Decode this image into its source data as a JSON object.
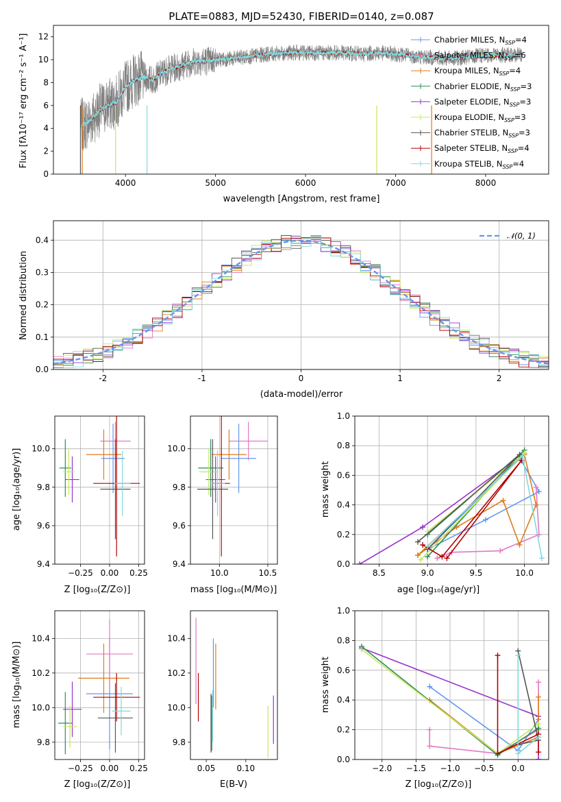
{
  "chart_data": [
    {
      "id": "spectrum",
      "type": "line",
      "title": "PLATE=0883, MJD=52430, FIBERID=0140, z=0.087",
      "xlabel": "wavelength [Angstrom, rest frame]",
      "ylabel": "Flux [fλ10⁻¹⁷ erg cm⁻² s⁻¹ A⁻¹]",
      "xlim": [
        3200,
        8700
      ],
      "ylim": [
        0,
        13
      ],
      "xticks": [
        4000,
        5000,
        6000,
        7000,
        8000
      ],
      "yticks": [
        0,
        2,
        4,
        6,
        8,
        10,
        12
      ],
      "grid": false,
      "legend_position": "top-right",
      "series": [
        {
          "name": "Chabrier MILES, N",
          "sub": "SSP",
          "suffix": "=4",
          "color": "#6495ed"
        },
        {
          "name": "Salpeter MILES, N",
          "sub": "SSP",
          "suffix": "=6",
          "color": "#e377c2"
        },
        {
          "name": "Kroupa MILES, N",
          "sub": "SSP",
          "suffix": "=4",
          "color": "#e07b1a"
        },
        {
          "name": "Chabrier ELODIE, N",
          "sub": "SSP",
          "suffix": "=3",
          "color": "#2e8b57"
        },
        {
          "name": "Salpeter ELODIE, N",
          "sub": "SSP",
          "suffix": "=3",
          "color": "#9932cc"
        },
        {
          "name": "Kroupa ELODIE, N",
          "sub": "SSP",
          "suffix": "=3",
          "color": "#c5e85a"
        },
        {
          "name": "Chabrier STELIB, N",
          "sub": "SSP",
          "suffix": "=3",
          "color": "#555555"
        },
        {
          "name": "Salpeter STELIB, N",
          "sub": "SSP",
          "suffix": "=4",
          "color": "#b30000"
        },
        {
          "name": "Kroupa STELIB, N",
          "sub": "SSP",
          "suffix": "=4",
          "color": "#7fd9e0"
        }
      ],
      "data_color": "#808080",
      "model_x": [
        3500,
        3600,
        3700,
        3800,
        3900,
        4000,
        4100,
        4200,
        4300,
        4400,
        4500,
        4600,
        4700,
        4800,
        4900,
        5000,
        5200,
        5400,
        5600,
        5800,
        6000,
        6200,
        6400,
        6600,
        6800,
        7000,
        7200,
        7400,
        7600,
        7800,
        8000,
        8200,
        8400
      ],
      "model_y": [
        4.2,
        4.6,
        5.5,
        6.0,
        6.3,
        7.6,
        8.2,
        8.5,
        8.2,
        8.8,
        9.2,
        9.4,
        9.7,
        9.9,
        9.9,
        10.0,
        10.1,
        10.3,
        10.5,
        10.6,
        10.6,
        10.6,
        10.6,
        10.5,
        10.6,
        10.5,
        10.3,
        10.2,
        10.1,
        10.2,
        10.4,
        10.4,
        10.4
      ]
    },
    {
      "id": "residuals",
      "type": "histogram",
      "xlabel": "(data-model)/error",
      "ylabel": "Normed distribution",
      "xlim": [
        -2.5,
        2.5
      ],
      "ylim": [
        0,
        0.46
      ],
      "xticks": [
        -2,
        -1,
        0,
        1,
        2
      ],
      "yticks": [
        0.0,
        0.1,
        0.2,
        0.3,
        0.4
      ],
      "grid": true,
      "legend_position": "top-right",
      "reference_curve": {
        "name": "𝒩(0, 1)",
        "color": "#6495ed",
        "mean": 0,
        "sigma": 1
      },
      "bin_width": 0.1
    },
    {
      "id": "age_vs_Z",
      "type": "errorbar",
      "xlabel": "Z [log₁₀(Z/Z⊙)]",
      "ylabel": "age  [log₁₀(age/yr)]",
      "xlim": [
        -0.47,
        0.3
      ],
      "ylim": [
        9.4,
        10.17
      ],
      "xticks": [
        -0.25,
        0.0,
        0.25
      ],
      "xticklabels": [
        "−0.25",
        "0.00",
        "0.25"
      ],
      "yticks": [
        9.4,
        9.6,
        9.8,
        10.0
      ],
      "grid": true,
      "points": [
        {
          "color": "#6495ed",
          "x": 0.03,
          "xerr": 0.1,
          "y": 9.95,
          "yerr": 0.18
        },
        {
          "color": "#e377c2",
          "x": 0.05,
          "xerr": 0.13,
          "y": 10.04,
          "yerr": 0.1
        },
        {
          "color": "#e07b1a",
          "x": -0.05,
          "xerr": 0.15,
          "y": 9.97,
          "yerr": 0.13
        },
        {
          "color": "#2e8b57",
          "x": -0.38,
          "xerr": 0.05,
          "y": 9.9,
          "yerr": 0.15
        },
        {
          "color": "#9932cc",
          "x": -0.32,
          "xerr": 0.06,
          "y": 9.84,
          "yerr": 0.12
        },
        {
          "color": "#c5e85a",
          "x": -0.35,
          "xerr": 0.05,
          "y": 9.88,
          "yerr": 0.12
        },
        {
          "color": "#555555",
          "x": 0.05,
          "xerr": 0.13,
          "y": 9.79,
          "yerr": 0.26
        },
        {
          "color": "#b30000",
          "x": 0.06,
          "xerr": 0.2,
          "y": 9.82,
          "yerr": 0.38
        },
        {
          "color": "#7fd9e0",
          "x": 0.11,
          "xerr": 0.07,
          "y": 9.82,
          "yerr": 0.17
        }
      ]
    },
    {
      "id": "age_vs_mass",
      "type": "errorbar",
      "xlabel": "mass [log₁₀(M/M⊙)]",
      "ylabel": "",
      "xlim": [
        9.7,
        10.6
      ],
      "ylim": [
        9.4,
        10.17
      ],
      "xticks": [
        10.0,
        10.5
      ],
      "yticks": [
        9.4,
        9.6,
        9.8,
        10.0
      ],
      "grid": true,
      "points": [
        {
          "color": "#6495ed",
          "x": 10.2,
          "xerr": 0.18,
          "y": 9.95,
          "yerr": 0.18
        },
        {
          "color": "#e377c2",
          "x": 10.3,
          "xerr": 0.2,
          "y": 10.04,
          "yerr": 0.1
        },
        {
          "color": "#e07b1a",
          "x": 10.1,
          "xerr": 0.18,
          "y": 9.97,
          "yerr": 0.13
        },
        {
          "color": "#2e8b57",
          "x": 9.91,
          "xerr": 0.13,
          "y": 9.9,
          "yerr": 0.15
        },
        {
          "color": "#9932cc",
          "x": 9.96,
          "xerr": 0.1,
          "y": 9.84,
          "yerr": 0.12
        },
        {
          "color": "#c5e85a",
          "x": 9.89,
          "xerr": 0.1,
          "y": 9.88,
          "yerr": 0.12
        },
        {
          "color": "#555555",
          "x": 9.93,
          "xerr": 0.16,
          "y": 9.79,
          "yerr": 0.26
        },
        {
          "color": "#b30000",
          "x": 10.02,
          "xerr": 0.09,
          "y": 9.82,
          "yerr": 0.38
        },
        {
          "color": "#7fd9e0",
          "x": 9.98,
          "xerr": 0.08,
          "y": 9.82,
          "yerr": 0.17
        }
      ]
    },
    {
      "id": "mass_vs_Z",
      "type": "errorbar",
      "xlabel": "Z [log₁₀(Z/Z⊙)]",
      "ylabel": "mass [log₁₀(M/M⊙)]",
      "xlim": [
        -0.47,
        0.3
      ],
      "ylim": [
        9.7,
        10.56
      ],
      "xticks": [
        -0.25,
        0.0,
        0.25
      ],
      "xticklabels": [
        "−0.25",
        "0.00",
        "0.25"
      ],
      "yticks": [
        9.8,
        10.0,
        10.2,
        10.4
      ],
      "grid": true,
      "points": [
        {
          "color": "#6495ed",
          "x": 0.0,
          "xerr": 0.2,
          "y": 10.08,
          "yerr": 0.32
        },
        {
          "color": "#e377c2",
          "x": 0.0,
          "xerr": 0.2,
          "y": 10.31,
          "yerr": 0.2
        },
        {
          "color": "#e07b1a",
          "x": -0.05,
          "xerr": 0.22,
          "y": 10.17,
          "yerr": 0.2
        },
        {
          "color": "#2e8b57",
          "x": -0.38,
          "xerr": 0.06,
          "y": 9.91,
          "yerr": 0.18
        },
        {
          "color": "#9932cc",
          "x": -0.32,
          "xerr": 0.08,
          "y": 9.99,
          "yerr": 0.16
        },
        {
          "color": "#c5e85a",
          "x": -0.34,
          "xerr": 0.06,
          "y": 9.89,
          "yerr": 0.12
        },
        {
          "color": "#555555",
          "x": 0.05,
          "xerr": 0.15,
          "y": 9.94,
          "yerr": 0.2
        },
        {
          "color": "#b30000",
          "x": 0.06,
          "xerr": 0.2,
          "y": 10.06,
          "yerr": 0.14
        },
        {
          "color": "#7fd9e0",
          "x": 0.1,
          "xerr": 0.08,
          "y": 9.98,
          "yerr": 0.14
        }
      ]
    },
    {
      "id": "mass_vs_EBV",
      "type": "errorbar",
      "xlabel": "E(B-V)",
      "ylabel": "",
      "xlim": [
        0.03,
        0.14
      ],
      "ylim": [
        9.7,
        10.56
      ],
      "xticks": [
        0.05,
        0.1
      ],
      "xticklabels": [
        "0.05",
        "0.10"
      ],
      "yticks": [
        9.8,
        10.0,
        10.2,
        10.4
      ],
      "grid": false,
      "points": [
        {
          "color": "#6495ed",
          "x": 0.059,
          "xerr": 0,
          "y": 10.2,
          "yerr": 0.2
        },
        {
          "color": "#e377c2",
          "x": 0.037,
          "xerr": 0,
          "y": 10.27,
          "yerr": 0.25
        },
        {
          "color": "#e07b1a",
          "x": 0.062,
          "xerr": 0,
          "y": 10.18,
          "yerr": 0.19
        },
        {
          "color": "#2e8b57",
          "x": 0.057,
          "xerr": 0,
          "y": 9.91,
          "yerr": 0.16
        },
        {
          "color": "#9932cc",
          "x": 0.135,
          "xerr": 0,
          "y": 9.93,
          "yerr": 0.14
        },
        {
          "color": "#c5e85a",
          "x": 0.128,
          "xerr": 0,
          "y": 9.86,
          "yerr": 0.15
        },
        {
          "color": "#555555",
          "x": 0.056,
          "xerr": 0,
          "y": 9.91,
          "yerr": 0.17
        },
        {
          "color": "#b30000",
          "x": 0.04,
          "xerr": 0,
          "y": 10.06,
          "yerr": 0.14
        },
        {
          "color": "#7fd9e0",
          "x": 0.058,
          "xerr": 0,
          "y": 9.95,
          "yerr": 0.15
        }
      ]
    },
    {
      "id": "massweight_vs_age",
      "type": "line",
      "xlabel": "age  [log₁₀(age/yr)]",
      "ylabel": "mass weight",
      "xlim": [
        8.25,
        10.25
      ],
      "ylim": [
        0.0,
        1.0
      ],
      "xticks": [
        8.5,
        9.0,
        9.5,
        10.0
      ],
      "yticks": [
        0.0,
        0.2,
        0.4,
        0.6,
        0.8,
        1.0
      ],
      "grid": true,
      "series": [
        {
          "color": "#9932cc",
          "points": [
            [
              8.3,
              0.0
            ],
            [
              8.95,
              0.25
            ],
            [
              10.0,
              0.75
            ]
          ]
        },
        {
          "color": "#6495ed",
          "points": [
            [
              9.0,
              0.1
            ],
            [
              9.6,
              0.3
            ],
            [
              10.15,
              0.49
            ],
            [
              9.95,
              0.72
            ],
            [
              9.0,
              0.1
            ]
          ]
        },
        {
          "color": "#e377c2",
          "points": [
            [
              9.1,
              0.04
            ],
            [
              9.25,
              0.08
            ],
            [
              9.75,
              0.09
            ],
            [
              10.15,
              0.2
            ],
            [
              10.12,
              0.52
            ]
          ]
        },
        {
          "color": "#e07b1a",
          "points": [
            [
              8.9,
              0.06
            ],
            [
              9.3,
              0.25
            ],
            [
              9.78,
              0.43
            ],
            [
              9.95,
              0.13
            ],
            [
              10.12,
              0.4
            ],
            [
              10.0,
              0.74
            ],
            [
              8.9,
              0.06
            ]
          ]
        },
        {
          "color": "#2e8b57",
          "points": [
            [
              9.0,
              0.2
            ],
            [
              10.0,
              0.77
            ],
            [
              9.0,
              0.05
            ]
          ]
        },
        {
          "color": "#c5e85a",
          "points": [
            [
              8.93,
              0.03
            ],
            [
              10.0,
              0.75
            ],
            [
              9.0,
              0.22
            ]
          ]
        },
        {
          "color": "#555555",
          "points": [
            [
              8.9,
              0.15
            ],
            [
              9.95,
              0.74
            ],
            [
              9.0,
              0.1
            ]
          ]
        },
        {
          "color": "#b30000",
          "points": [
            [
              8.95,
              0.13
            ],
            [
              9.15,
              0.05
            ],
            [
              9.97,
              0.7
            ],
            [
              9.2,
              0.04
            ]
          ]
        },
        {
          "color": "#7fd9e0",
          "points": [
            [
              9.0,
              0.12
            ],
            [
              9.98,
              0.73
            ],
            [
              10.18,
              0.04
            ]
          ]
        }
      ]
    },
    {
      "id": "massweight_vs_Z",
      "type": "line",
      "xlabel": "Z [log₁₀(Z/Z⊙)]",
      "ylabel": "mass weight",
      "xlim": [
        -2.4,
        0.45
      ],
      "ylim": [
        0.0,
        1.0
      ],
      "xticks": [
        -2.0,
        -1.5,
        -1.0,
        -0.5,
        0.0
      ],
      "xticklabels": [
        "−2.0",
        "−1.5",
        "−1.0",
        "−0.5",
        "0.0"
      ],
      "yticks": [
        0.0,
        0.2,
        0.4,
        0.6,
        0.8,
        1.0
      ],
      "grid": true,
      "series": [
        {
          "color": "#9932cc",
          "points": [
            [
              -2.3,
              0.75
            ],
            [
              0.3,
              0.29
            ],
            [
              0.3,
              0.0
            ]
          ]
        },
        {
          "color": "#6495ed",
          "points": [
            [
              -1.3,
              0.49
            ],
            [
              0.0,
              0.06
            ],
            [
              0.3,
              0.27
            ]
          ]
        },
        {
          "color": "#e377c2",
          "points": [
            [
              -1.3,
              0.2
            ],
            [
              -1.3,
              0.09
            ],
            [
              -0.3,
              0.04
            ],
            [
              0.3,
              0.2
            ],
            [
              0.3,
              0.52
            ]
          ]
        },
        {
          "color": "#e07b1a",
          "points": [
            [
              -1.3,
              0.4
            ],
            [
              -0.3,
              0.04
            ],
            [
              0.3,
              0.15
            ],
            [
              0.3,
              0.42
            ]
          ]
        },
        {
          "color": "#2e8b57",
          "points": [
            [
              -2.3,
              0.76
            ],
            [
              -0.3,
              0.03
            ],
            [
              0.3,
              0.21
            ]
          ]
        },
        {
          "color": "#c5e85a",
          "points": [
            [
              -2.3,
              0.74
            ],
            [
              -0.3,
              0.04
            ],
            [
              0.3,
              0.24
            ]
          ]
        },
        {
          "color": "#555555",
          "points": [
            [
              0.0,
              0.73
            ],
            [
              0.3,
              0.13
            ],
            [
              0.0,
              0.1
            ]
          ]
        },
        {
          "color": "#b30000",
          "points": [
            [
              -0.3,
              0.7
            ],
            [
              -0.3,
              0.04
            ],
            [
              0.3,
              0.17
            ],
            [
              0.3,
              0.05
            ]
          ]
        },
        {
          "color": "#7fd9e0",
          "points": [
            [
              0.0,
              0.7
            ],
            [
              0.0,
              0.04
            ],
            [
              0.3,
              0.15
            ]
          ]
        }
      ]
    }
  ]
}
